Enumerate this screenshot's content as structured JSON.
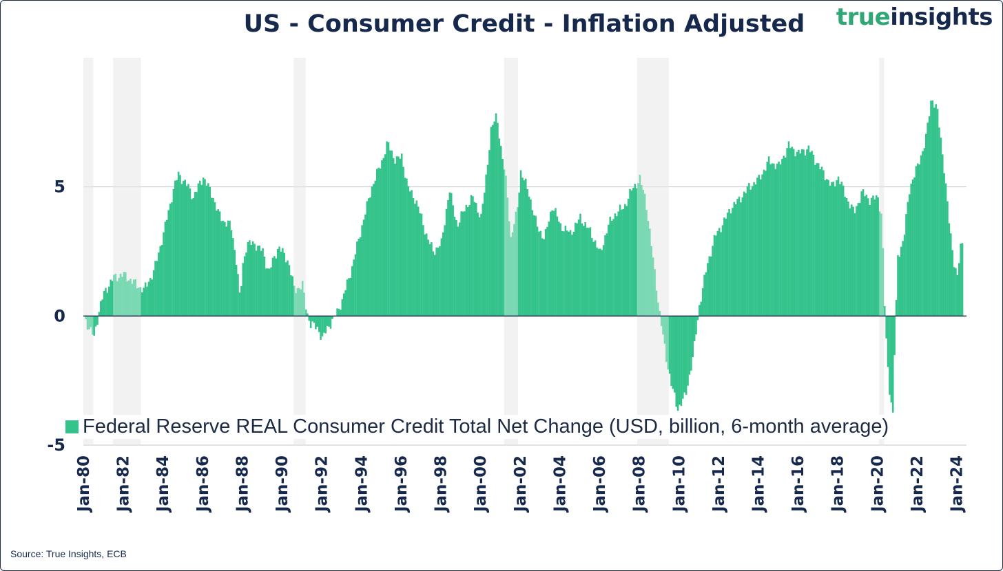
{
  "title": "US - Consumer Credit - Inflation Adjusted",
  "brand": {
    "part1": "true",
    "part2": "insights"
  },
  "source": "Source: True Insights, ECB",
  "colors": {
    "bar": "#34c38b",
    "recession": "#ebebeb",
    "text": "#16294d",
    "grid": "#c4c4c4",
    "zero": "#1d2a44"
  },
  "legend": {
    "label": "Federal Reserve REAL Consumer Credit Total Net Change (USD, billion, 6-month average)"
  },
  "chart_data": {
    "type": "bar",
    "title": "US - Consumer Credit - Inflation Adjusted",
    "series": [
      {
        "name": "Federal Reserve REAL Consumer Credit Total Net Change (USD, billion, 6-month average)",
        "anchors": [
          [
            1980.0,
            0
          ],
          [
            1980.25,
            -0.5
          ],
          [
            1980.5,
            -0.8
          ],
          [
            1980.75,
            0.2
          ],
          [
            1981.0,
            0.9
          ],
          [
            1981.5,
            1.5
          ],
          [
            1982.0,
            1.6
          ],
          [
            1982.5,
            1.3
          ],
          [
            1983.0,
            1.0
          ],
          [
            1983.5,
            1.7
          ],
          [
            1984.0,
            3.2
          ],
          [
            1984.5,
            4.9
          ],
          [
            1984.75,
            5.5
          ],
          [
            1985.25,
            5.0
          ],
          [
            1985.5,
            4.6
          ],
          [
            1986.0,
            5.4
          ],
          [
            1986.5,
            4.6
          ],
          [
            1986.75,
            4.0
          ],
          [
            1987.0,
            3.7
          ],
          [
            1987.4,
            3.5
          ],
          [
            1987.7,
            2.0
          ],
          [
            1987.85,
            0.6
          ],
          [
            1988.0,
            2.0
          ],
          [
            1988.2,
            2.8
          ],
          [
            1988.6,
            2.8
          ],
          [
            1989.0,
            2.5
          ],
          [
            1989.3,
            1.7
          ],
          [
            1989.5,
            2.1
          ],
          [
            1989.8,
            2.7
          ],
          [
            1990.3,
            2.1
          ],
          [
            1990.6,
            1.0
          ],
          [
            1991.0,
            1.2
          ],
          [
            1991.2,
            0.2
          ],
          [
            1991.4,
            -0.3
          ],
          [
            1991.8,
            -0.5
          ],
          [
            1992.0,
            -0.9
          ],
          [
            1992.3,
            -0.4
          ],
          [
            1992.6,
            -0.1
          ],
          [
            1993.0,
            0.6
          ],
          [
            1993.5,
            1.9
          ],
          [
            1994.0,
            3.5
          ],
          [
            1994.5,
            5.0
          ],
          [
            1995.0,
            6.0
          ],
          [
            1995.3,
            6.7
          ],
          [
            1995.7,
            6.0
          ],
          [
            1996.0,
            6.2
          ],
          [
            1996.3,
            5.0
          ],
          [
            1996.7,
            4.5
          ],
          [
            1997.0,
            3.8
          ],
          [
            1997.3,
            3.0
          ],
          [
            1997.6,
            2.5
          ],
          [
            1998.0,
            2.8
          ],
          [
            1998.4,
            4.9
          ],
          [
            1998.8,
            3.5
          ],
          [
            1999.2,
            4.2
          ],
          [
            1999.6,
            4.6
          ],
          [
            2000.0,
            3.8
          ],
          [
            2000.2,
            5.0
          ],
          [
            2000.5,
            7.2
          ],
          [
            2000.8,
            7.8
          ],
          [
            2001.0,
            6.5
          ],
          [
            2001.3,
            5.0
          ],
          [
            2001.5,
            3.0
          ],
          [
            2001.8,
            4.0
          ],
          [
            2002.0,
            5.6
          ],
          [
            2002.4,
            4.8
          ],
          [
            2002.8,
            3.5
          ],
          [
            2003.2,
            3.0
          ],
          [
            2003.6,
            4.3
          ],
          [
            2004.0,
            3.5
          ],
          [
            2004.5,
            3.2
          ],
          [
            2005.0,
            3.8
          ],
          [
            2005.4,
            3.4
          ],
          [
            2005.8,
            2.8
          ],
          [
            2006.0,
            2.4
          ],
          [
            2006.4,
            3.5
          ],
          [
            2006.8,
            4.0
          ],
          [
            2007.2,
            4.2
          ],
          [
            2007.6,
            4.9
          ],
          [
            2008.0,
            5.3
          ],
          [
            2008.3,
            4.5
          ],
          [
            2008.7,
            2.0
          ],
          [
            2009.0,
            0.1
          ],
          [
            2009.3,
            -1.5
          ],
          [
            2009.6,
            -2.7
          ],
          [
            2009.9,
            -3.6
          ],
          [
            2010.3,
            -3.1
          ],
          [
            2010.7,
            -1.5
          ],
          [
            2011.0,
            0.4
          ],
          [
            2011.4,
            2.0
          ],
          [
            2011.8,
            3.1
          ],
          [
            2012.2,
            3.6
          ],
          [
            2012.6,
            4.2
          ],
          [
            2013.0,
            4.5
          ],
          [
            2013.5,
            5.0
          ],
          [
            2014.0,
            5.3
          ],
          [
            2014.5,
            6.0
          ],
          [
            2015.0,
            5.8
          ],
          [
            2015.5,
            6.6
          ],
          [
            2016.0,
            6.3
          ],
          [
            2016.5,
            6.5
          ],
          [
            2016.8,
            6.1
          ],
          [
            2017.2,
            5.6
          ],
          [
            2017.7,
            5.0
          ],
          [
            2018.0,
            5.4
          ],
          [
            2018.4,
            4.6
          ],
          [
            2018.8,
            4.0
          ],
          [
            2019.2,
            4.8
          ],
          [
            2019.6,
            4.5
          ],
          [
            2020.0,
            4.6
          ],
          [
            2020.2,
            3.8
          ],
          [
            2020.35,
            0.0
          ],
          [
            2020.45,
            -1.5
          ],
          [
            2020.6,
            -3.0
          ],
          [
            2020.75,
            -3.8
          ],
          [
            2020.85,
            -1.0
          ],
          [
            2021.0,
            2.3
          ],
          [
            2021.3,
            3.0
          ],
          [
            2021.6,
            5.0
          ],
          [
            2022.0,
            5.8
          ],
          [
            2022.4,
            6.8
          ],
          [
            2022.7,
            8.5
          ],
          [
            2023.0,
            7.9
          ],
          [
            2023.3,
            6.0
          ],
          [
            2023.6,
            3.5
          ],
          [
            2023.85,
            2.0
          ],
          [
            2024.0,
            1.5
          ],
          [
            2024.2,
            2.9
          ],
          [
            2024.3,
            2.8
          ]
        ]
      }
    ],
    "recessions": [
      [
        1980.0,
        1980.5
      ],
      [
        1981.5,
        1982.9
      ],
      [
        1990.6,
        1991.2
      ],
      [
        2001.2,
        2001.9
      ],
      [
        2007.9,
        2009.5
      ],
      [
        2020.1,
        2020.35
      ]
    ],
    "x_range": [
      1980.0,
      2024.5
    ],
    "ylim": [
      -5,
      10
    ],
    "yticks": [
      "5",
      "0",
      "-5"
    ],
    "ytick_values": [
      5,
      0,
      -5
    ],
    "xticks": [
      "Jan-80",
      "Jan-82",
      "Jan-84",
      "Jan-86",
      "Jan-88",
      "Jan-90",
      "Jan-92",
      "Jan-94",
      "Jan-96",
      "Jan-98",
      "Jan-00",
      "Jan-02",
      "Jan-04",
      "Jan-06",
      "Jan-08",
      "Jan-10",
      "Jan-12",
      "Jan-14",
      "Jan-16",
      "Jan-18",
      "Jan-20",
      "Jan-22",
      "Jan-24"
    ],
    "xtick_values": [
      1980,
      1982,
      1984,
      1986,
      1988,
      1990,
      1992,
      1994,
      1996,
      1998,
      2000,
      2002,
      2004,
      2006,
      2008,
      2010,
      2012,
      2014,
      2016,
      2018,
      2020,
      2022,
      2024
    ],
    "xlabel": "",
    "ylabel": "",
    "legend_position": "bottom-left"
  }
}
